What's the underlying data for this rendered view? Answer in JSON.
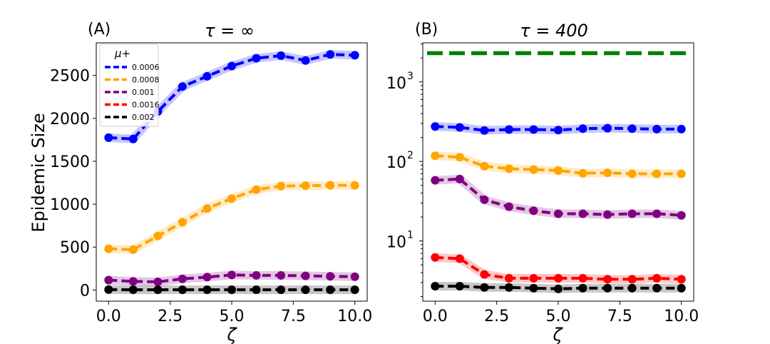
{
  "chart_data": [
    {
      "type": "line",
      "panel_label": "(A)",
      "title": "τ = ∞",
      "xlabel": "ζ",
      "ylabel": "Epidemic Size",
      "x": [
        0,
        1,
        2,
        3,
        4,
        5,
        6,
        7,
        8,
        9,
        10
      ],
      "xlim": [
        -0.5,
        10.5
      ],
      "ylim": [
        -130,
        2880
      ],
      "y_scale": "linear",
      "x_ticks": [
        0,
        2.5,
        5,
        7.5,
        10
      ],
      "x_tick_labels": [
        "0.0",
        "2.5",
        "5.0",
        "7.5",
        "10.0"
      ],
      "y_ticks": [
        0,
        500,
        1000,
        1500,
        2000,
        2500
      ],
      "y_tick_labels": [
        "0",
        "500",
        "1000",
        "1500",
        "2000",
        "2500"
      ],
      "grid": false,
      "legend": {
        "title": "μ+",
        "placement": "top-left",
        "entries": [
          "0.0006",
          "0.0008",
          "0.001",
          "0.0016",
          "0.002"
        ],
        "colors": [
          "#0000ff",
          "#ffa500",
          "#800080",
          "#ff0000",
          "#000000"
        ]
      },
      "series": [
        {
          "name": "0.0006",
          "color": "#0000ff",
          "values": [
            1775,
            1760,
            2080,
            2370,
            2490,
            2610,
            2700,
            2730,
            2675,
            2745,
            2735
          ]
        },
        {
          "name": "0.0008",
          "color": "#ffa500",
          "values": [
            480,
            470,
            630,
            790,
            950,
            1065,
            1170,
            1210,
            1215,
            1220,
            1220
          ]
        },
        {
          "name": "0.001",
          "color": "#800080",
          "values": [
            115,
            100,
            95,
            130,
            150,
            175,
            170,
            170,
            165,
            160,
            155
          ]
        },
        {
          "name": "0.002",
          "color": "#000000",
          "values": [
            5,
            3,
            3,
            3,
            3,
            3,
            3,
            3,
            3,
            3,
            3
          ]
        }
      ]
    },
    {
      "type": "line",
      "panel_label": "(B)",
      "title": "τ = 400",
      "xlabel": "ζ",
      "ylabel": "",
      "x": [
        0,
        1,
        2,
        3,
        4,
        5,
        6,
        7,
        8,
        9,
        10
      ],
      "xlim": [
        -0.5,
        10.5
      ],
      "ylim": [
        1.75,
        3100
      ],
      "y_scale": "log",
      "x_ticks": [
        0,
        2.5,
        5,
        7.5,
        10
      ],
      "x_tick_labels": [
        "0.0",
        "2.5",
        "5.0",
        "7.5",
        "10.0"
      ],
      "y_ticks": [
        10,
        100,
        1000
      ],
      "y_tick_labels": [
        {
          "base": "10",
          "exp": "1"
        },
        {
          "base": "10",
          "exp": "2"
        },
        {
          "base": "10",
          "exp": "3"
        }
      ],
      "grid": false,
      "reference_line": {
        "y": 2300,
        "color": "#008000",
        "style": "dashed"
      },
      "series": [
        {
          "name": "0.0006",
          "color": "#0000ff",
          "values": [
            275,
            268,
            245,
            252,
            252,
            248,
            258,
            262,
            258,
            255,
            255
          ]
        },
        {
          "name": "0.0008",
          "color": "#ffa500",
          "values": [
            118,
            113,
            87,
            81,
            79,
            77,
            71,
            72,
            70,
            70,
            70
          ]
        },
        {
          "name": "0.001",
          "color": "#800080",
          "values": [
            58,
            60,
            33,
            27,
            24,
            22,
            22,
            21.5,
            22,
            22,
            21
          ]
        },
        {
          "name": "0.0016",
          "color": "#ff0000",
          "values": [
            6.2,
            6.0,
            3.8,
            3.4,
            3.4,
            3.4,
            3.4,
            3.3,
            3.3,
            3.4,
            3.3
          ]
        },
        {
          "name": "0.002",
          "color": "#000000",
          "values": [
            2.7,
            2.7,
            2.6,
            2.6,
            2.55,
            2.5,
            2.55,
            2.55,
            2.55,
            2.55,
            2.55
          ]
        }
      ]
    }
  ]
}
